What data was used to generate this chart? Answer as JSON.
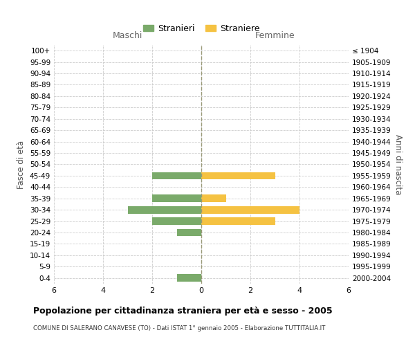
{
  "age_groups": [
    "100+",
    "95-99",
    "90-94",
    "85-89",
    "80-84",
    "75-79",
    "70-74",
    "65-69",
    "60-64",
    "55-59",
    "50-54",
    "45-49",
    "40-44",
    "35-39",
    "30-34",
    "25-29",
    "20-24",
    "15-19",
    "10-14",
    "5-9",
    "0-4"
  ],
  "birth_years": [
    "≤ 1904",
    "1905-1909",
    "1910-1914",
    "1915-1919",
    "1920-1924",
    "1925-1929",
    "1930-1934",
    "1935-1939",
    "1940-1944",
    "1945-1949",
    "1950-1954",
    "1955-1959",
    "1960-1964",
    "1965-1969",
    "1970-1974",
    "1975-1979",
    "1980-1984",
    "1985-1989",
    "1990-1994",
    "1995-1999",
    "2000-2004"
  ],
  "maschi": [
    0,
    0,
    0,
    0,
    0,
    0,
    0,
    0,
    0,
    0,
    0,
    2,
    0,
    2,
    3,
    2,
    1,
    0,
    0,
    0,
    1
  ],
  "femmine": [
    0,
    0,
    0,
    0,
    0,
    0,
    0,
    0,
    0,
    0,
    0,
    3,
    0,
    1,
    4,
    3,
    0,
    0,
    0,
    0,
    0
  ],
  "color_maschi": "#7aaa6a",
  "color_femmine": "#f5c242",
  "xlim": 6,
  "title": "Popolazione per cittadinanza straniera per età e sesso - 2005",
  "subtitle": "COMUNE DI SALERANO CANAVESE (TO) - Dati ISTAT 1° gennaio 2005 - Elaborazione TUTTITALIA.IT",
  "ylabel_left": "Fasce di età",
  "ylabel_right": "Anni di nascita",
  "label_maschi": "Stranieri",
  "label_femmine": "Straniere",
  "header_left": "Maschi",
  "header_right": "Femmine",
  "bg_color": "#ffffff",
  "grid_color": "#cccccc",
  "bar_height": 0.65
}
